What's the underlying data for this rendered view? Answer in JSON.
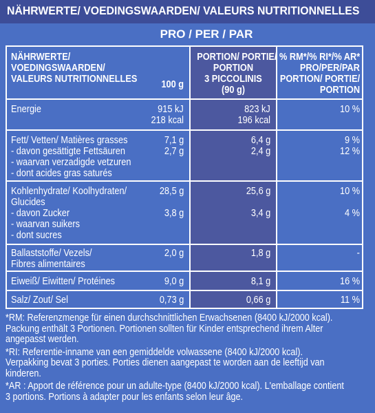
{
  "banner_title": "NÄHRWERTE/ VOEDINGSWAARDEN/ VALEURS NUTRITIONNELLES",
  "pro_per_par": "PRO / PER / PAR",
  "headers": {
    "nutrient": [
      "NÄHRWERTE/",
      "VOEDINGSWAARDEN/",
      "VALEURS NUTRITIONNELLES"
    ],
    "per100": "100 g",
    "portion": [
      "PORTION/ PORTIE/",
      "PORTION",
      "3 PICCOLINIS",
      "(90 g)"
    ],
    "ri": [
      "% RM*/% RI*/% AR*",
      "PRO/PER/PAR",
      "PORTION/ PORTIE/",
      "PORTION"
    ]
  },
  "rows": {
    "energy": {
      "label": "Energie",
      "v100": [
        "915 kJ",
        "218 kcal"
      ],
      "vportion": [
        "823 kJ",
        "196 kcal"
      ],
      "ri": "10 %"
    },
    "fat": {
      "label": "Fett/ Vetten/ Matières grasses",
      "v100": "7,1 g",
      "vportion": "6,4 g",
      "ri": "9 %"
    },
    "saturates": {
      "label": [
        "- davon gesättigte Fettsäuren",
        "- waarvan verzadigde vetzuren",
        "- dont acides gras saturés"
      ],
      "v100": "2,7 g",
      "vportion": "2,4 g",
      "ri": "12 %"
    },
    "carbs": {
      "label": [
        "Kohlenhydrate/ Koolhydraten/",
        "Glucides"
      ],
      "v100": "28,5 g",
      "vportion": "25,6 g",
      "ri": "10 %"
    },
    "sugars": {
      "label": [
        "- davon Zucker",
        "- waarvan suikers",
        "- dont sucres"
      ],
      "v100": "3,8 g",
      "vportion": "3,4 g",
      "ri": "4 %"
    },
    "fibre": {
      "label": [
        "Ballaststoffe/ Vezels/",
        "Fibres alimentaires"
      ],
      "v100": "2,0 g",
      "vportion": "1,8 g",
      "ri": "-"
    },
    "protein": {
      "label": "Eiweiß/ Eiwitten/ Protéines",
      "v100": "9,0 g",
      "vportion": "8,1 g",
      "ri": "16 %"
    },
    "salt": {
      "label": "Salz/ Zout/ Sel",
      "v100": "0,73 g",
      "vportion": "0,66 g",
      "ri": "11 %"
    }
  },
  "footnotes": {
    "rm": [
      "*RM: Referenzmenge für einen durchschnittlichen Erwachsenen (8400 kJ/2000 kcal).",
      "Packung enthält 3 Portionen. Portionen sollten für Kinder entsprechend ihrem Alter",
      "angepasst werden."
    ],
    "ri": [
      "*RI: Referentie-inname van een gemiddelde volwassene (8400 kJ/2000 kcal).",
      "Verpakking bevat 3 porties. Porties dienen aangepast te worden aan de leeftijd van",
      "kinderen."
    ],
    "ar": [
      "*AR : Apport de référence pour un adulte-type (8400 kJ/2000 kcal). L'emballage contient",
      "3 portions. Portions à adapter pour les enfants selon leur âge."
    ]
  }
}
